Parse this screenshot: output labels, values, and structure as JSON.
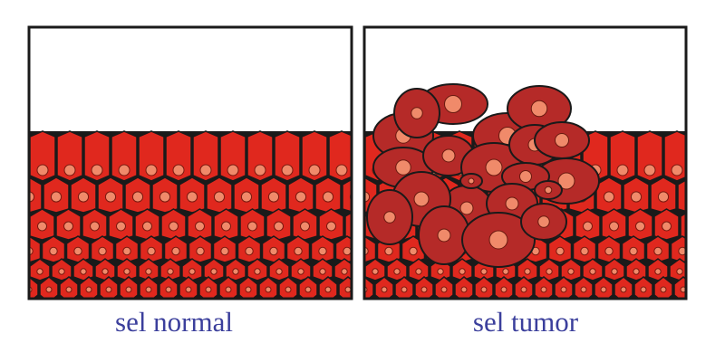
{
  "panels": [
    {
      "id": "normal",
      "label": "sel normal",
      "tumor": false
    },
    {
      "id": "tumor",
      "label": "sel tumor",
      "tumor": true
    }
  ],
  "colors": {
    "cell": "#e0281e",
    "tumor_cell": "#b52a28",
    "nucleus": "#f08a6a",
    "outline": "#1a1a1a",
    "label": "#3b3f9c"
  }
}
